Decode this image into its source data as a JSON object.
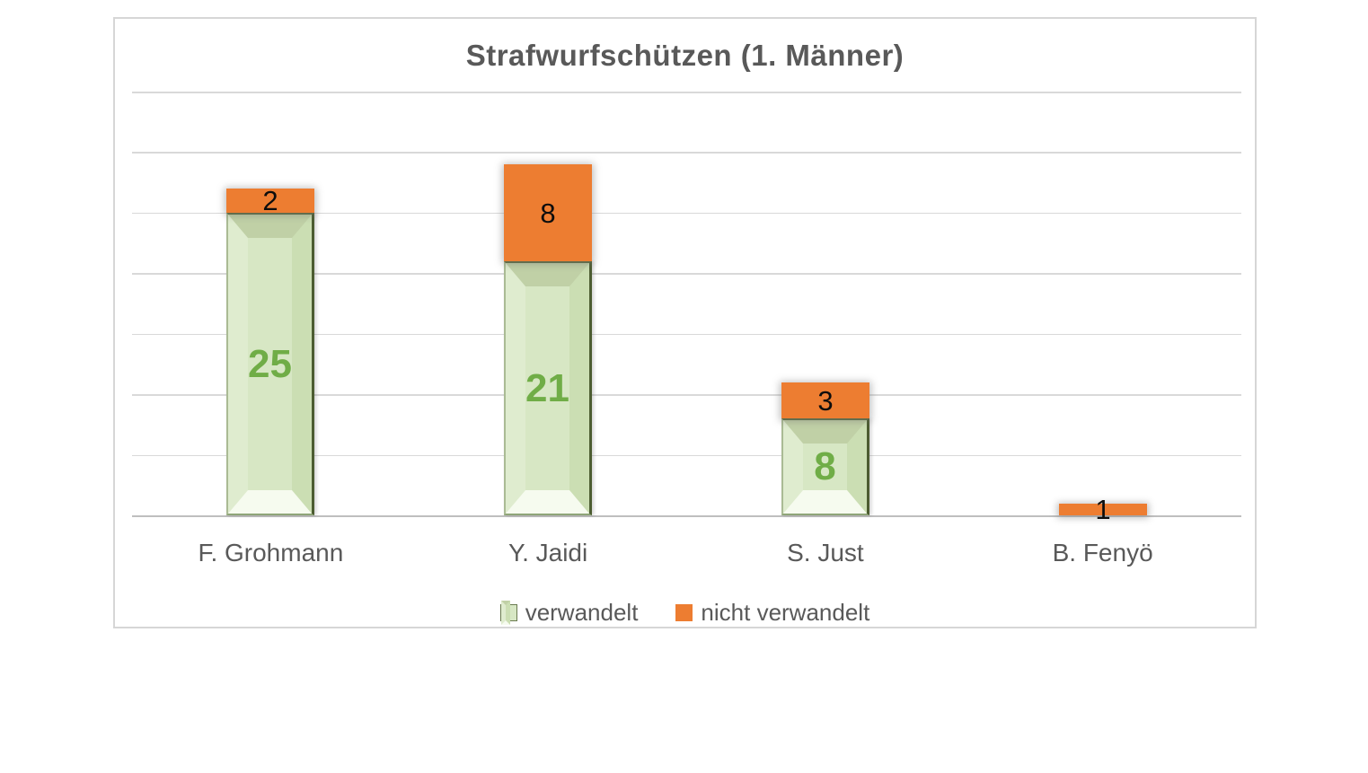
{
  "chart": {
    "frame": {
      "background": "#ffffff",
      "border_color": "#d6d6d6"
    },
    "title_color": "#595959",
    "gridline_color": "#d9d9d9",
    "axis_line_color": "#bfbfbf"
  },
  "chart_data": {
    "type": "bar",
    "stacked": true,
    "title": "Strafwurfschützen (1. Männer)",
    "categories": [
      "F. Grohmann",
      "Y. Jaidi",
      "S. Just",
      "B. Fenyö"
    ],
    "series": [
      {
        "name": "verwandelt",
        "color": "#d7e7c4",
        "label_color": "#70ad47",
        "values": [
          25,
          21,
          8,
          0
        ]
      },
      {
        "name": "nicht verwandelt",
        "color": "#ed7d31",
        "label_color": "#0d0d0d",
        "values": [
          2,
          8,
          3,
          1
        ]
      }
    ],
    "totals": [
      27,
      29,
      11,
      1
    ],
    "xlabel": "",
    "ylabel": "",
    "ylim": [
      0,
      35
    ],
    "gridline_step": 5,
    "y_tick_labels_visible": false,
    "grid": "horizontal",
    "legend_position": "bottom",
    "legend_marker_style": {
      "verwandelt": "beveled-green-square",
      "nicht_verwandelt": "flat-orange-square"
    }
  }
}
